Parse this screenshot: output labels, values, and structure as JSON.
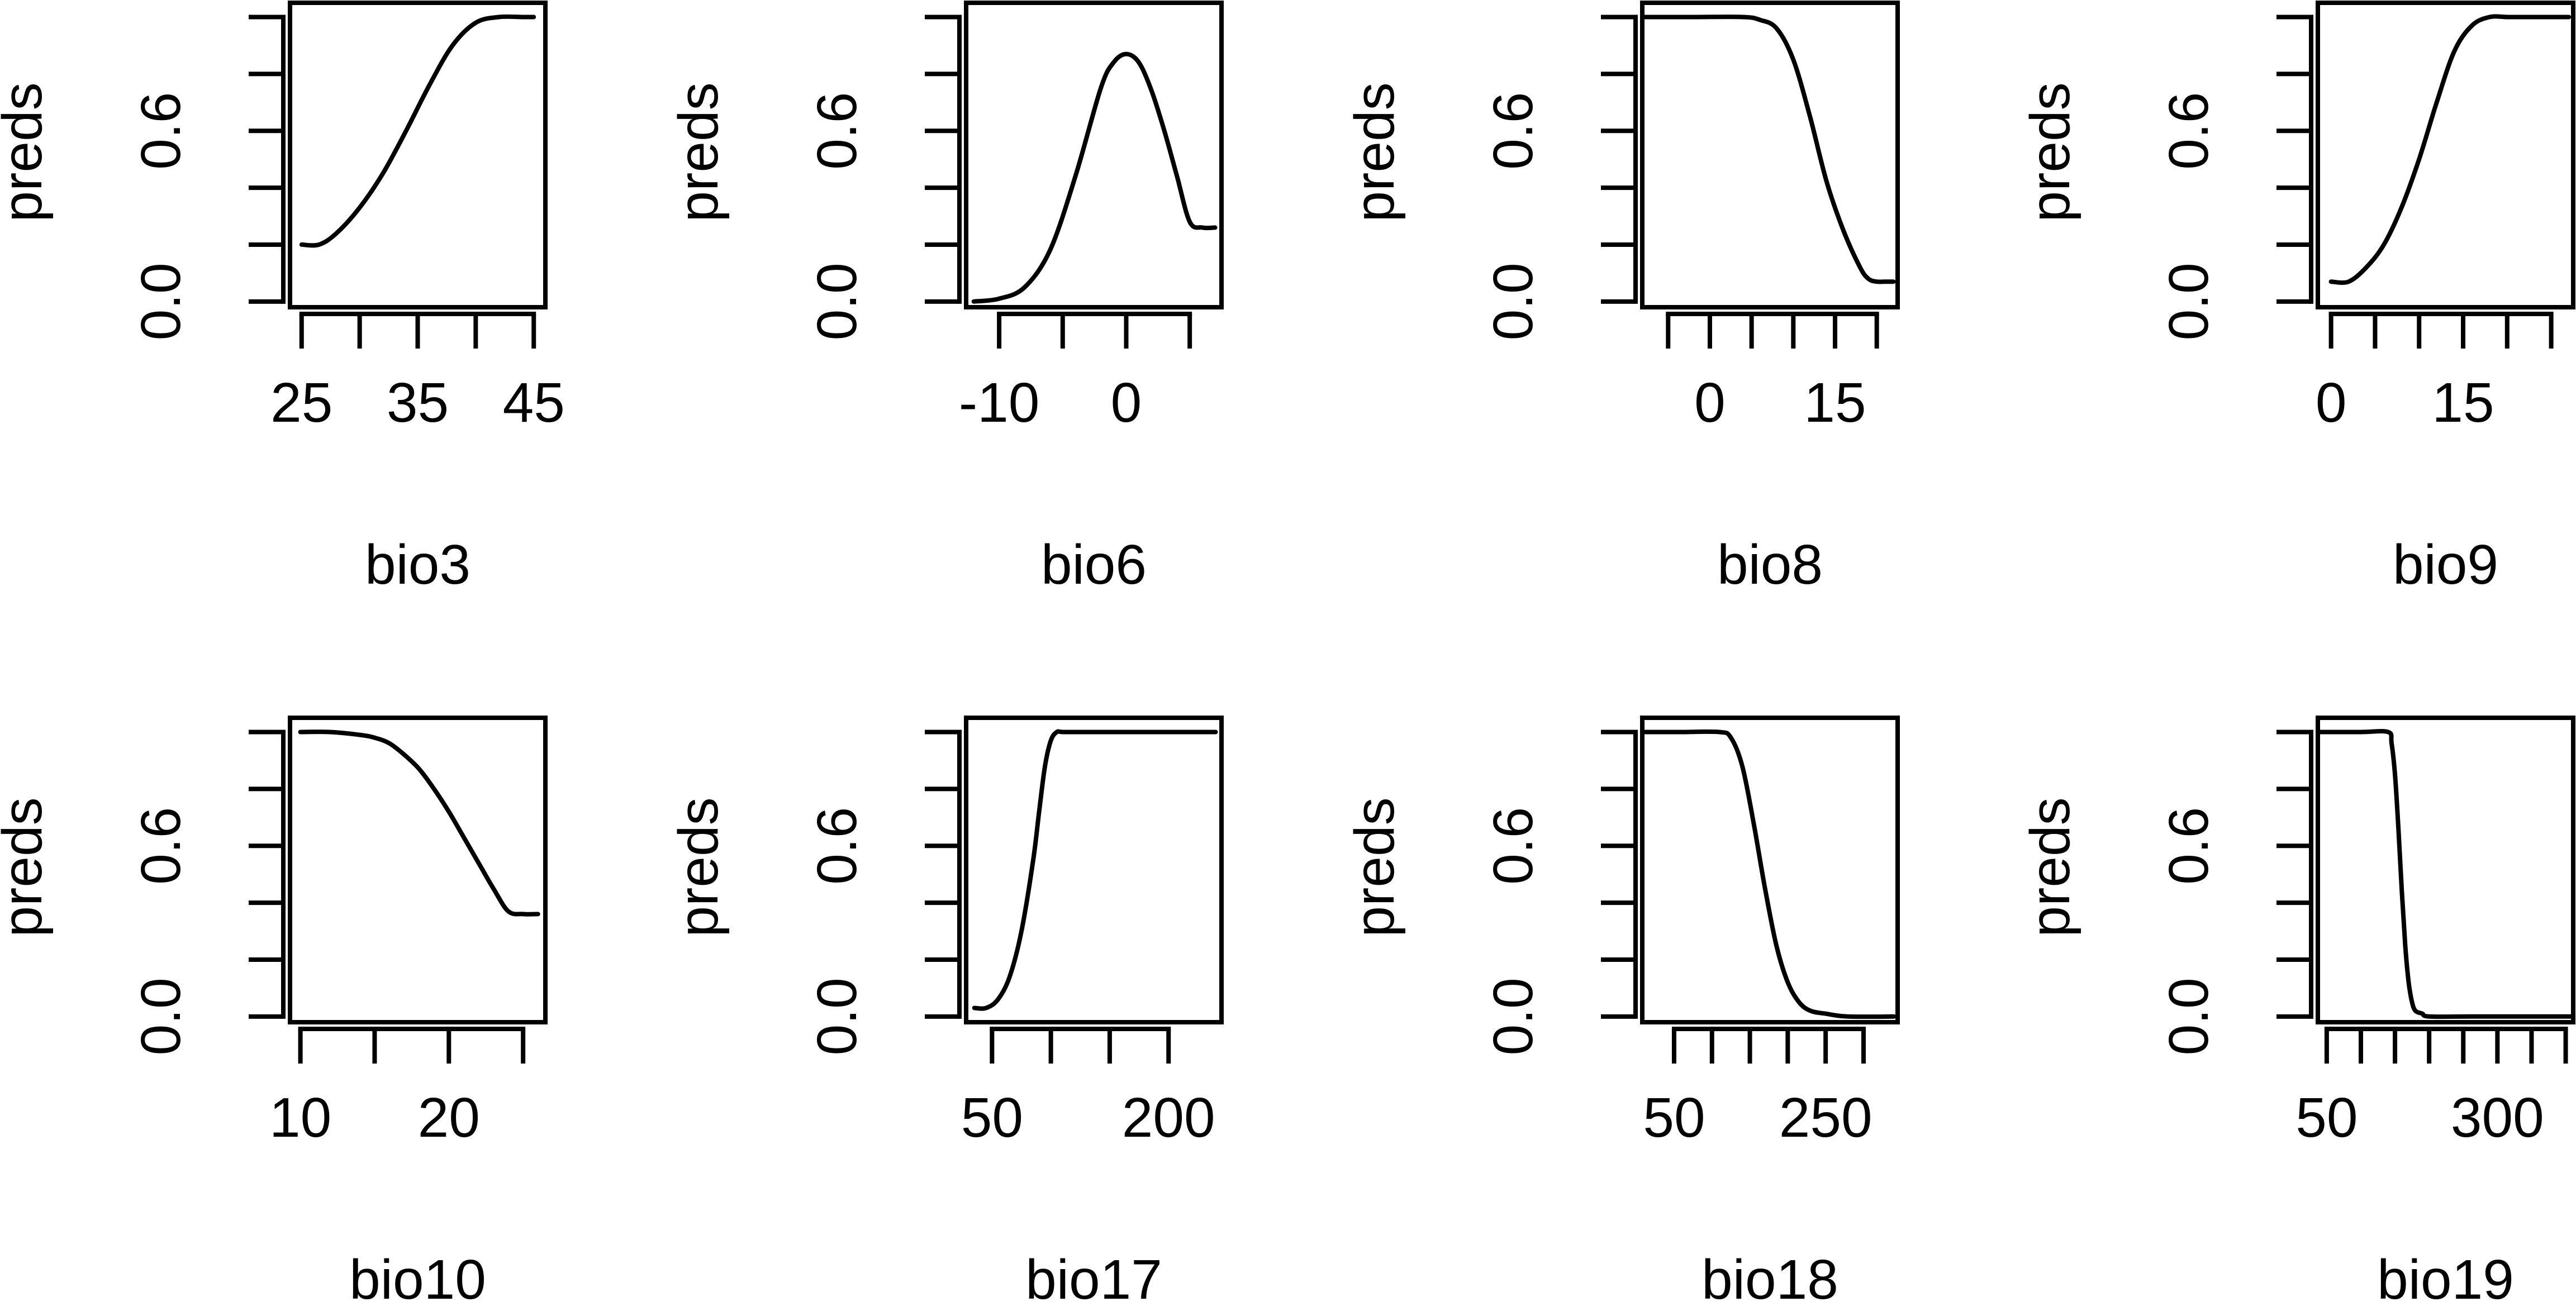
{
  "chart_data": [
    {
      "type": "line",
      "xlabel": "bio3",
      "ylabel": "preds",
      "xlim": [
        24,
        46
      ],
      "ylim": [
        -0.02,
        1.05
      ],
      "xticks": [
        25,
        30,
        35,
        40,
        45
      ],
      "xtick_labels": [
        "25",
        "",
        "35",
        "",
        "45"
      ],
      "yticks": [
        0.0,
        0.2,
        0.4,
        0.6,
        0.8,
        1.0
      ],
      "ytick_labels": [
        "0.0",
        "",
        "",
        "0.6",
        "",
        ""
      ],
      "x": [
        25,
        26.5,
        28,
        30,
        32,
        34,
        36,
        38,
        40,
        42,
        44,
        45
      ],
      "y": [
        0.2,
        0.2,
        0.24,
        0.33,
        0.45,
        0.6,
        0.76,
        0.9,
        0.98,
        1.0,
        1.0,
        1.0
      ]
    },
    {
      "type": "line",
      "xlabel": "bio6",
      "ylabel": "preds",
      "xlim": [
        -12.6,
        7.5
      ],
      "ylim": [
        -0.02,
        1.05
      ],
      "xticks": [
        -10,
        -5,
        0,
        5
      ],
      "xtick_labels": [
        "-10",
        "",
        "0",
        ""
      ],
      "yticks": [
        0.0,
        0.2,
        0.4,
        0.6,
        0.8,
        1.0
      ],
      "ytick_labels": [
        "0.0",
        "",
        "",
        "0.6",
        "",
        ""
      ],
      "x": [
        -12,
        -10,
        -8,
        -6,
        -4,
        -2,
        -1,
        0,
        1,
        2,
        3,
        4,
        5,
        6,
        7
      ],
      "y": [
        0.0,
        0.01,
        0.05,
        0.18,
        0.44,
        0.75,
        0.84,
        0.87,
        0.84,
        0.74,
        0.6,
        0.44,
        0.28,
        0.26,
        0.26
      ]
    },
    {
      "type": "line",
      "xlabel": "bio8",
      "ylabel": "preds",
      "xlim": [
        -8.1,
        22.5
      ],
      "ylim": [
        -0.02,
        1.05
      ],
      "xticks": [
        -5,
        0,
        5,
        10,
        15,
        20
      ],
      "xtick_labels": [
        "",
        "0",
        "",
        "",
        "15",
        ""
      ],
      "yticks": [
        0.0,
        0.2,
        0.4,
        0.6,
        0.8,
        1.0
      ],
      "ytick_labels": [
        "0.0",
        "",
        "",
        "0.6",
        "",
        ""
      ],
      "x": [
        -8,
        -2,
        4,
        6,
        8,
        10,
        12,
        14,
        16,
        18,
        19,
        20,
        21,
        22
      ],
      "y": [
        1.0,
        1.0,
        1.0,
        0.99,
        0.96,
        0.85,
        0.65,
        0.42,
        0.25,
        0.12,
        0.08,
        0.07,
        0.07,
        0.07
      ]
    },
    {
      "type": "line",
      "xlabel": "bio9",
      "ylabel": "preds",
      "xlim": [
        -1.5,
        27.5
      ],
      "ylim": [
        -0.02,
        1.05
      ],
      "xticks": [
        0,
        5,
        10,
        15,
        20,
        25
      ],
      "xtick_labels": [
        "0",
        "",
        "",
        "15",
        "",
        ""
      ],
      "yticks": [
        0.0,
        0.2,
        0.4,
        0.6,
        0.8,
        1.0
      ],
      "ytick_labels": [
        "0.0",
        "",
        "",
        "0.6",
        "",
        ""
      ],
      "x": [
        0,
        2,
        4,
        6,
        8,
        10,
        12,
        14,
        16,
        18,
        20,
        22,
        24,
        27
      ],
      "y": [
        0.07,
        0.07,
        0.12,
        0.2,
        0.33,
        0.5,
        0.7,
        0.88,
        0.97,
        1.0,
        1.0,
        1.0,
        1.0,
        1.0
      ]
    },
    {
      "type": "line",
      "xlabel": "bio10",
      "ylabel": "preds",
      "xlim": [
        9.3,
        26.5
      ],
      "ylim": [
        -0.02,
        1.05
      ],
      "xticks": [
        10,
        15,
        20,
        25
      ],
      "xtick_labels": [
        "10",
        "",
        "20",
        ""
      ],
      "yticks": [
        0.0,
        0.2,
        0.4,
        0.6,
        0.8,
        1.0
      ],
      "ytick_labels": [
        "0.0",
        "",
        "",
        "0.6",
        "",
        ""
      ],
      "x": [
        10,
        12,
        14,
        15,
        16,
        17,
        18,
        19,
        20,
        21,
        22,
        23,
        24,
        25,
        26
      ],
      "y": [
        1.0,
        1.0,
        0.99,
        0.98,
        0.96,
        0.92,
        0.87,
        0.8,
        0.72,
        0.63,
        0.54,
        0.45,
        0.37,
        0.36,
        0.36
      ]
    },
    {
      "type": "line",
      "xlabel": "bio17",
      "ylabel": "preds",
      "xlim": [
        28,
        245
      ],
      "ylim": [
        -0.02,
        1.05
      ],
      "xticks": [
        50,
        100,
        150,
        200
      ],
      "xtick_labels": [
        "50",
        "",
        "",
        "200"
      ],
      "yticks": [
        0.0,
        0.2,
        0.4,
        0.6,
        0.8,
        1.0
      ],
      "ytick_labels": [
        "0.0",
        "",
        "",
        "0.6",
        "",
        ""
      ],
      "x": [
        35,
        45,
        55,
        65,
        75,
        85,
        90,
        95,
        100,
        105,
        110,
        130,
        180,
        240
      ],
      "y": [
        0.03,
        0.03,
        0.06,
        0.14,
        0.3,
        0.55,
        0.72,
        0.88,
        0.97,
        1.0,
        1.0,
        1.0,
        1.0,
        1.0
      ]
    },
    {
      "type": "line",
      "xlabel": "bio18",
      "ylabel": "preds",
      "xlim": [
        8,
        345
      ],
      "ylim": [
        -0.02,
        1.05
      ],
      "xticks": [
        50,
        100,
        150,
        200,
        250,
        300
      ],
      "xtick_labels": [
        "50",
        "",
        "",
        "",
        "250",
        ""
      ],
      "yticks": [
        0.0,
        0.2,
        0.4,
        0.6,
        0.8,
        1.0
      ],
      "ytick_labels": [
        "0.0",
        "",
        "",
        "0.6",
        "",
        ""
      ],
      "x": [
        10,
        60,
        110,
        125,
        140,
        155,
        170,
        185,
        200,
        215,
        230,
        250,
        280,
        340
      ],
      "y": [
        1.0,
        1.0,
        1.0,
        0.98,
        0.88,
        0.68,
        0.45,
        0.25,
        0.12,
        0.05,
        0.02,
        0.01,
        0.0,
        0.0
      ]
    },
    {
      "type": "line",
      "xlabel": "bio19",
      "ylabel": "preds",
      "xlim": [
        37,
        411
      ],
      "ylim": [
        -0.02,
        1.05
      ],
      "xticks": [
        50,
        100,
        150,
        200,
        250,
        300,
        350,
        400
      ],
      "xtick_labels": [
        "50",
        "",
        "",
        "",
        "",
        "300",
        "",
        ""
      ],
      "yticks": [
        0.0,
        0.2,
        0.4,
        0.6,
        0.8,
        1.0
      ],
      "ytick_labels": [
        "0.0",
        "",
        "",
        "0.6",
        "",
        ""
      ],
      "x": [
        37,
        100,
        140,
        145,
        150,
        155,
        160,
        165,
        170,
        175,
        180,
        190,
        200,
        260,
        411
      ],
      "y": [
        1.0,
        1.0,
        1.0,
        0.96,
        0.85,
        0.66,
        0.44,
        0.25,
        0.12,
        0.05,
        0.02,
        0.01,
        0.0,
        0.0,
        0.0
      ]
    }
  ]
}
